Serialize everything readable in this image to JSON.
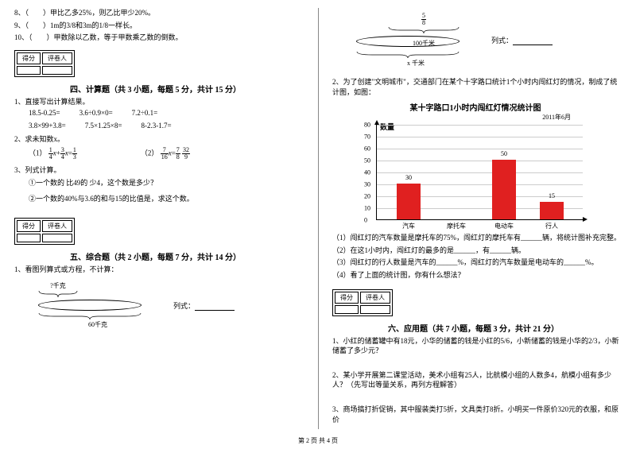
{
  "left": {
    "q8": "8、（　　）甲比乙多25%，则乙比甲少20%。",
    "q9": "9、（　　）1m的3/8和3m的1/8一样长。",
    "q10": "10、（　　）甲数除以乙数，等于甲数乘乙数的倒数。",
    "score_label_1": "得分",
    "score_label_2": "评卷人",
    "section4_title": "四、计算题（共 3 小题，每题 5 分，共计 15 分）",
    "s4_q1": "1、直接写出计算结果。",
    "s4_row1": [
      "18.5-0.25=",
      "3.6÷0.9×0=",
      "7.2÷0.1="
    ],
    "s4_row2": [
      "3.8×99+3.8=",
      "7.5×1.25×8=",
      "8-2.3-1.7="
    ],
    "s4_q2": "2、求未知数x。",
    "s4_q2_1_prefix": "（1）",
    "s4_q2_1_eq": "=",
    "s4_q2_2_prefix": "（2）",
    "frac_1_4": {
      "n": "1",
      "d": "4"
    },
    "frac_3_4": {
      "n": "3",
      "d": "4"
    },
    "frac_1_3": {
      "n": "1",
      "d": "3"
    },
    "frac_7_16": {
      "n": "7",
      "d": "16"
    },
    "frac_7_8": {
      "n": "7",
      "d": "8"
    },
    "frac_32_9": {
      "n": "32",
      "d": "9"
    },
    "s4_q3": "3、列式计算。",
    "s4_q3_1": "①一个数的 比49的 少4，这个数是多少？",
    "s4_q3_2": "②一个数的40%与3.6的和与15的比值是，求这个数。",
    "section5_title": "五、综合题（共 2 小题，每题 7 分，共计 14 分）",
    "s5_q1": "1、看图列算式或方程，不计算：",
    "diag1_top": "?千克",
    "diag1_bottom": "60千克",
    "diag1_formula": "列式："
  },
  "right": {
    "frac_5_8": {
      "n": "5",
      "d": "8"
    },
    "diag2_mid": "100千米",
    "diag2_bottom": "x 千米",
    "diag2_formula": "列式：",
    "s5_q2": "2、为了创建\"文明城市\"，交通部门在某个十字路口统计1个小时内闯红灯的情况，制成了统计图，如图：",
    "chart_title": "某十字路口1小时内闯红灯情况统计图",
    "chart_date": "2011年6月",
    "y_title": "数量",
    "y_ticks": [
      "0",
      "10",
      "20",
      "30",
      "40",
      "50",
      "60",
      "70",
      "80"
    ],
    "bars": [
      {
        "label": "汽车",
        "value": 30,
        "color": "#e02020"
      },
      {
        "label": "摩托车",
        "value": null,
        "color": "#e02020"
      },
      {
        "label": "电动车",
        "value": 50,
        "color": "#e02020"
      },
      {
        "label": "行人",
        "value": 15,
        "color": "#e02020"
      }
    ],
    "chart_ymax": 80,
    "s5_sub1": "（1）闯红灯的汽车数量是摩托车的75%，闯红灯的摩托车有______辆，将统计图补充完整。",
    "s5_sub2": "（2）在这1小时内，闯红灯的最多的是______，有______辆。",
    "s5_sub3": "（3）闯红灯的行人数量是汽车的______%，闯红灯的汽车数量是电动车的______%。",
    "s5_sub4": "（4）看了上面的统计图，你有什么想法？",
    "score_label_1": "得分",
    "score_label_2": "评卷人",
    "section6_title": "六、应用题（共 7 小题，每题 3 分，共计 21 分）",
    "s6_q1": "1、小红的储蓄罐中有18元，小华的储蓄的钱是小红的5/6，小新储蓄的钱是小华的2/3，小新储蓄了多少元？",
    "s6_q2": "2、某小学开展第二课堂活动，美术小组有25人，比航模小组的人数多4，航模小组有多少人？（先写出等量关系，再列方程解答）",
    "s6_q3": "3、商场搞打折促销，其中服装类打5折，文具类打8折。小明买一件原价320元的衣服，和原价"
  },
  "footer": "第 2 页 共 4 页"
}
